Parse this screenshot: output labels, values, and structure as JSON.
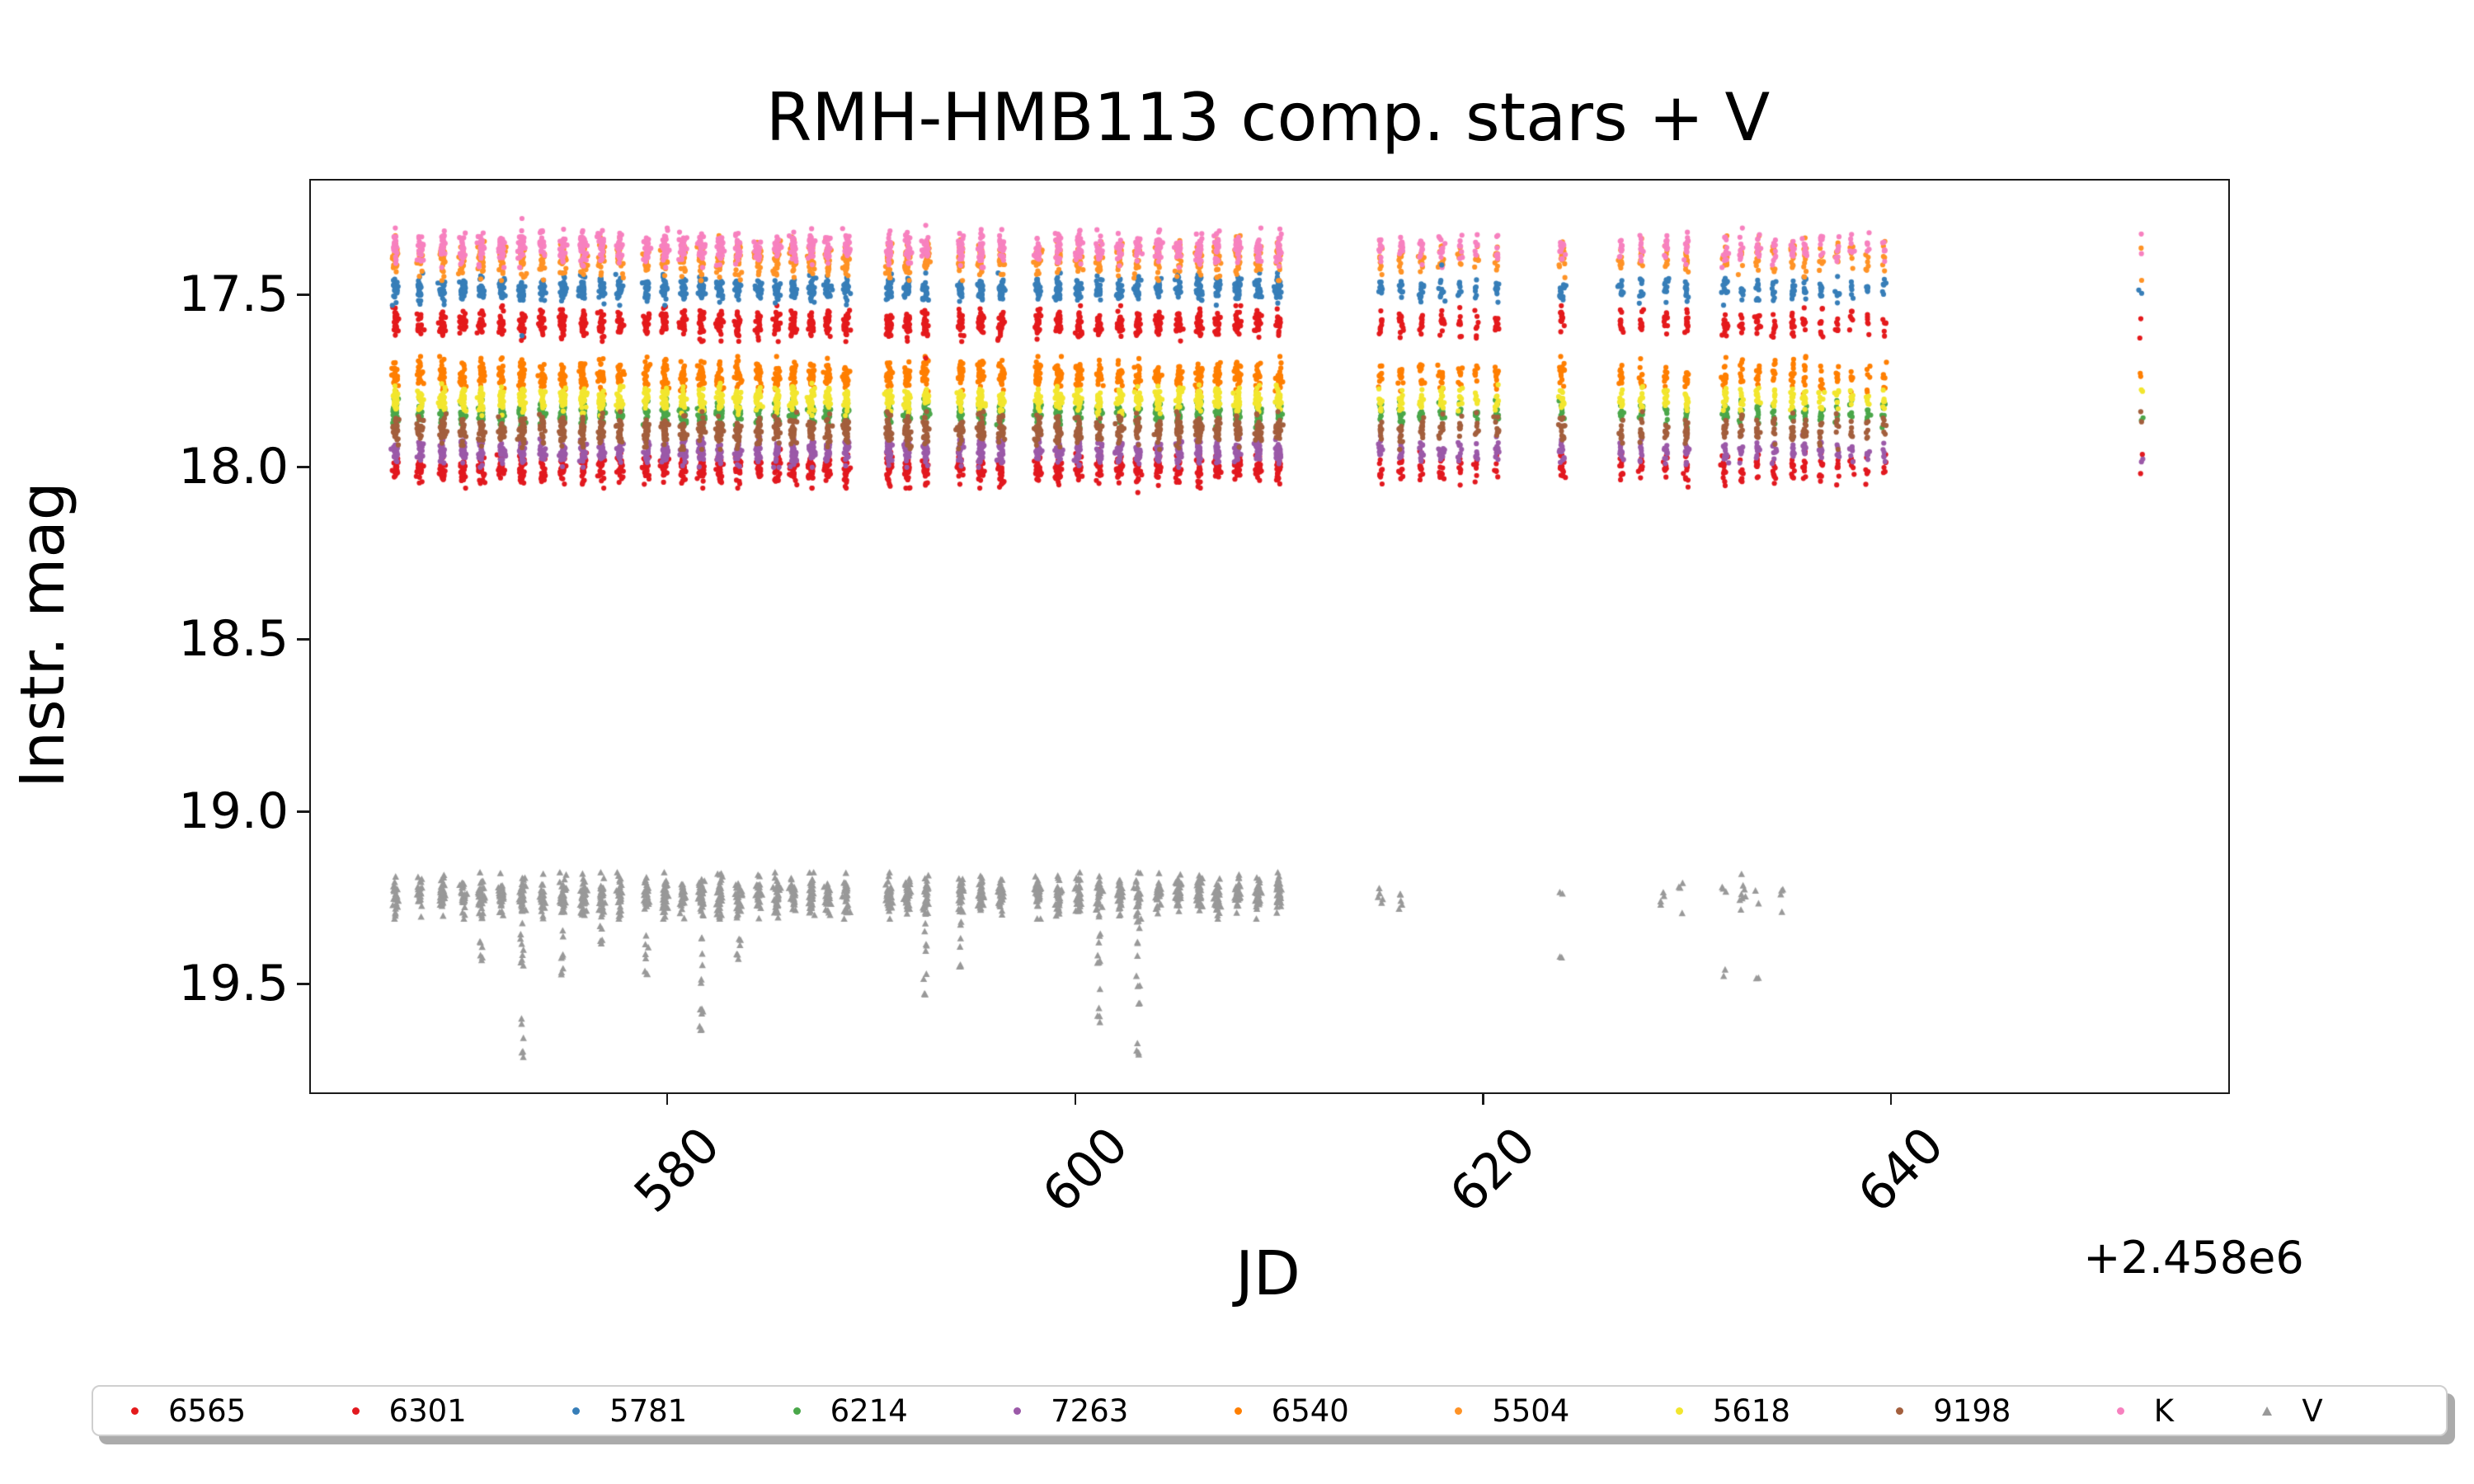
{
  "chart_data": {
    "type": "scatter",
    "title": "RMH-HMB113 comp. stars + V",
    "xlabel": "JD",
    "ylabel": "Instr. mag",
    "x_offset_text": "+2.458e6",
    "x_ticks": [
      "580",
      "600",
      "620",
      "640"
    ],
    "x_tick_values": [
      580,
      600,
      620,
      640
    ],
    "y_ticks": [
      "17.5",
      "18.0",
      "18.5",
      "19.0",
      "19.5"
    ],
    "y_tick_values": [
      17.5,
      18.0,
      18.5,
      19.0,
      19.5
    ],
    "x_range": [
      562.45,
      656.47
    ],
    "y_range": [
      17.165,
      19.81
    ],
    "y_axis_inverted": true,
    "grid": false,
    "legend_position": "bottom",
    "spine_color": "#1a1a1a",
    "series": [
      {
        "label": "6565",
        "color": "#e41a1c",
        "marker": "circle",
        "mean_mag": 17.58,
        "sigma": 0.02
      },
      {
        "label": "6301",
        "color": "#e2191f",
        "marker": "circle",
        "mean_mag": 18.0,
        "sigma": 0.022
      },
      {
        "label": "5781",
        "color": "#377eb8",
        "marker": "circle",
        "mean_mag": 17.48,
        "sigma": 0.018
      },
      {
        "label": "6214",
        "color": "#4aa74a",
        "marker": "circle",
        "mean_mag": 17.84,
        "sigma": 0.016
      },
      {
        "label": "7263",
        "color": "#9b59a8",
        "marker": "circle",
        "mean_mag": 17.95,
        "sigma": 0.018
      },
      {
        "label": "6540",
        "color": "#ff7f00",
        "marker": "circle",
        "mean_mag": 17.73,
        "sigma": 0.021
      },
      {
        "label": "5504",
        "color": "#ff9326",
        "marker": "circle",
        "mean_mag": 17.39,
        "sigma": 0.025
      },
      {
        "label": "5618",
        "color": "#f2e62e",
        "marker": "circle",
        "mean_mag": 17.8,
        "sigma": 0.018
      },
      {
        "label": "9198",
        "color": "#a35f3d",
        "marker": "circle",
        "mean_mag": 17.89,
        "sigma": 0.021
      },
      {
        "label": "K",
        "color": "#f781bf",
        "marker": "circle",
        "mean_mag": 17.36,
        "sigma": 0.022
      },
      {
        "label": "V",
        "color": "#999999",
        "marker": "triangle",
        "mean_mag": 19.24,
        "sigma": 0.028
      }
    ],
    "nights": [
      {
        "jd": 566.6,
        "size": 1.0
      },
      {
        "jd": 567.8,
        "size": 1.0
      },
      {
        "jd": 568.9,
        "size": 1.0
      },
      {
        "jd": 569.9,
        "size": 1.0
      },
      {
        "jd": 570.8,
        "size": 1.0
      },
      {
        "jd": 571.8,
        "size": 1.0
      },
      {
        "jd": 572.8,
        "size": 1.0
      },
      {
        "jd": 573.8,
        "size": 1.0
      },
      {
        "jd": 574.8,
        "size": 1.0
      },
      {
        "jd": 575.8,
        "size": 1.0
      },
      {
        "jd": 576.7,
        "size": 1.0
      },
      {
        "jd": 577.6,
        "size": 1.0
      },
      {
        "jd": 578.9,
        "size": 1.0
      },
      {
        "jd": 579.8,
        "size": 1.0
      },
      {
        "jd": 580.7,
        "size": 1.0
      },
      {
        "jd": 581.6,
        "size": 1.0
      },
      {
        "jd": 582.5,
        "size": 1.0
      },
      {
        "jd": 583.4,
        "size": 1.0
      },
      {
        "jd": 584.4,
        "size": 1.0
      },
      {
        "jd": 585.3,
        "size": 1.0
      },
      {
        "jd": 586.1,
        "size": 1.0
      },
      {
        "jd": 587.0,
        "size": 1.0
      },
      {
        "jd": 587.8,
        "size": 1.0
      },
      {
        "jd": 588.7,
        "size": 1.0
      },
      {
        "jd": 590.8,
        "size": 1.0
      },
      {
        "jd": 591.7,
        "size": 1.0
      },
      {
        "jd": 592.6,
        "size": 1.0
      },
      {
        "jd": 594.3,
        "size": 1.0
      },
      {
        "jd": 595.3,
        "size": 1.0
      },
      {
        "jd": 596.3,
        "size": 1.0
      },
      {
        "jd": 598.1,
        "size": 1.0
      },
      {
        "jd": 599.1,
        "size": 1.0
      },
      {
        "jd": 600.1,
        "size": 1.0
      },
      {
        "jd": 601.1,
        "size": 1.0
      },
      {
        "jd": 602.1,
        "size": 1.0
      },
      {
        "jd": 603.0,
        "size": 1.0
      },
      {
        "jd": 604.0,
        "size": 1.0
      },
      {
        "jd": 605.0,
        "size": 1.0
      },
      {
        "jd": 606.0,
        "size": 1.0
      },
      {
        "jd": 606.9,
        "size": 1.0
      },
      {
        "jd": 607.9,
        "size": 1.0
      },
      {
        "jd": 608.9,
        "size": 1.0
      },
      {
        "jd": 609.9,
        "size": 1.0
      },
      {
        "jd": 614.9,
        "size": 0.45
      },
      {
        "jd": 615.9,
        "size": 0.4
      },
      {
        "jd": 616.9,
        "size": 0.4
      },
      {
        "jd": 617.9,
        "size": 0.5
      },
      {
        "jd": 618.8,
        "size": 0.4
      },
      {
        "jd": 619.6,
        "size": 0.35
      },
      {
        "jd": 620.6,
        "size": 0.35
      },
      {
        "jd": 623.8,
        "size": 0.5
      },
      {
        "jd": 626.7,
        "size": 0.4
      },
      {
        "jd": 627.7,
        "size": 0.45
      },
      {
        "jd": 628.9,
        "size": 0.45
      },
      {
        "jd": 629.9,
        "size": 0.4
      },
      {
        "jd": 631.8,
        "size": 0.5
      },
      {
        "jd": 632.6,
        "size": 0.45
      },
      {
        "jd": 633.4,
        "size": 0.45
      },
      {
        "jd": 634.2,
        "size": 0.4
      },
      {
        "jd": 635.1,
        "size": 0.4
      },
      {
        "jd": 635.7,
        "size": 0.35
      },
      {
        "jd": 636.5,
        "size": 0.3
      },
      {
        "jd": 637.3,
        "size": 0.28
      },
      {
        "jd": 638.0,
        "size": 0.25
      },
      {
        "jd": 638.8,
        "size": 0.22
      },
      {
        "jd": 639.6,
        "size": 0.2
      },
      {
        "jd": 652.2,
        "size": 0.08
      }
    ],
    "v_nights": [
      {
        "jd": 566.6,
        "size": 1.0
      },
      {
        "jd": 567.8,
        "size": 1.0
      },
      {
        "jd": 568.9,
        "size": 1.0
      },
      {
        "jd": 569.9,
        "size": 1.0
      },
      {
        "jd": 570.8,
        "size": 1.0
      },
      {
        "jd": 571.8,
        "size": 1.0
      },
      {
        "jd": 572.8,
        "size": 1.0
      },
      {
        "jd": 573.8,
        "size": 1.0
      },
      {
        "jd": 574.8,
        "size": 1.0
      },
      {
        "jd": 575.8,
        "size": 1.0
      },
      {
        "jd": 576.7,
        "size": 1.0
      },
      {
        "jd": 577.6,
        "size": 1.0
      },
      {
        "jd": 578.9,
        "size": 1.0
      },
      {
        "jd": 579.8,
        "size": 1.0
      },
      {
        "jd": 580.7,
        "size": 1.0
      },
      {
        "jd": 581.6,
        "size": 1.0
      },
      {
        "jd": 582.5,
        "size": 1.0
      },
      {
        "jd": 583.4,
        "size": 1.0
      },
      {
        "jd": 584.4,
        "size": 1.0
      },
      {
        "jd": 585.3,
        "size": 1.0
      },
      {
        "jd": 586.1,
        "size": 1.0
      },
      {
        "jd": 587.0,
        "size": 1.0
      },
      {
        "jd": 587.8,
        "size": 1.0
      },
      {
        "jd": 588.7,
        "size": 1.0
      },
      {
        "jd": 590.8,
        "size": 1.0
      },
      {
        "jd": 591.7,
        "size": 1.0
      },
      {
        "jd": 592.6,
        "size": 1.0
      },
      {
        "jd": 594.3,
        "size": 1.0
      },
      {
        "jd": 595.3,
        "size": 1.0
      },
      {
        "jd": 596.3,
        "size": 1.0
      },
      {
        "jd": 598.1,
        "size": 1.0
      },
      {
        "jd": 599.1,
        "size": 1.0
      },
      {
        "jd": 600.1,
        "size": 1.0
      },
      {
        "jd": 601.1,
        "size": 1.0
      },
      {
        "jd": 602.1,
        "size": 1.0
      },
      {
        "jd": 603.0,
        "size": 1.0
      },
      {
        "jd": 604.0,
        "size": 1.0
      },
      {
        "jd": 605.0,
        "size": 1.0
      },
      {
        "jd": 606.0,
        "size": 1.0
      },
      {
        "jd": 606.9,
        "size": 1.0
      },
      {
        "jd": 607.9,
        "size": 1.0
      },
      {
        "jd": 608.9,
        "size": 1.0
      },
      {
        "jd": 609.9,
        "size": 1.0
      },
      {
        "jd": 614.9,
        "size": 0.18
      },
      {
        "jd": 615.9,
        "size": 0.12
      },
      {
        "jd": 623.8,
        "size": 0.05
      },
      {
        "jd": 628.7,
        "size": 0.12
      },
      {
        "jd": 629.7,
        "size": 0.12
      },
      {
        "jd": 631.8,
        "size": 0.08
      },
      {
        "jd": 632.6,
        "size": 0.3
      },
      {
        "jd": 633.4,
        "size": 0.05
      },
      {
        "jd": 634.5,
        "size": 0.12
      }
    ],
    "v_eclipses": [
      {
        "jd": 570.8,
        "depth": 19.42
      },
      {
        "jd": 572.8,
        "depth": 19.7
      },
      {
        "jd": 574.8,
        "depth": 19.46
      },
      {
        "jd": 576.7,
        "depth": 19.38
      },
      {
        "jd": 578.9,
        "depth": 19.47
      },
      {
        "jd": 581.6,
        "depth": 19.62
      },
      {
        "jd": 583.4,
        "depth": 19.42
      },
      {
        "jd": 592.6,
        "depth": 19.52
      },
      {
        "jd": 594.3,
        "depth": 19.45
      },
      {
        "jd": 601.1,
        "depth": 19.6
      },
      {
        "jd": 603.0,
        "depth": 19.7
      },
      {
        "jd": 623.8,
        "depth": 19.42
      },
      {
        "jd": 631.8,
        "depth": 19.47
      },
      {
        "jd": 633.4,
        "depth": 19.48
      }
    ],
    "extra_points": [
      {
        "series": "K",
        "jd": 572.8,
        "mag": 17.275
      },
      {
        "series": "5781",
        "jd": 572.8,
        "mag": 17.615
      },
      {
        "series": "5781",
        "jd": 617.9,
        "mag": 17.41
      },
      {
        "series": "6301",
        "jd": 603.0,
        "mag": 18.07
      },
      {
        "series": "6565",
        "jd": 592.6,
        "mag": 17.68
      },
      {
        "series": "K",
        "jd": 592.6,
        "mag": 17.295
      }
    ]
  }
}
